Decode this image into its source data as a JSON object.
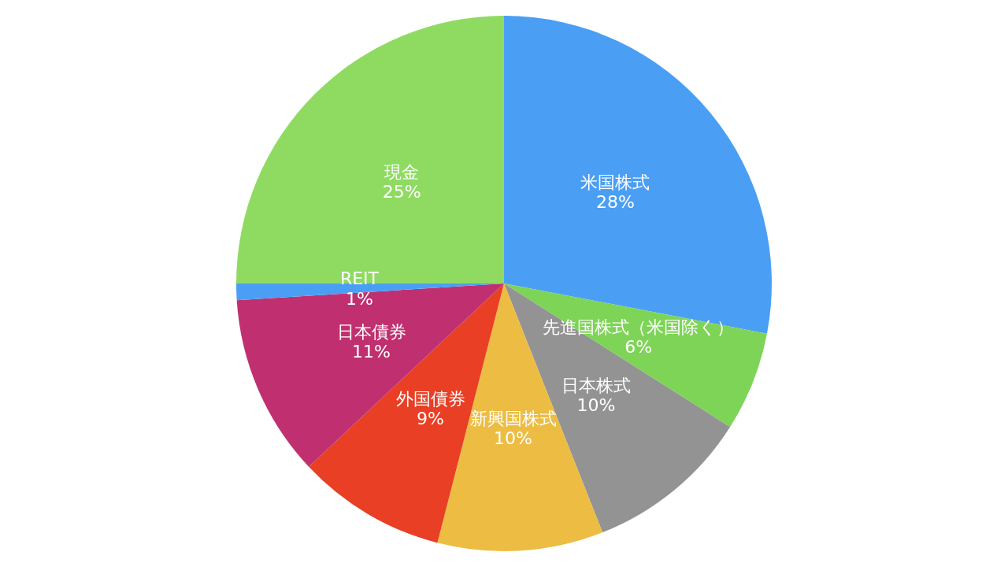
{
  "chart_data": {
    "type": "pie",
    "categories": [
      "米国株式",
      "先進国株式（米国除く）",
      "日本株式",
      "新興国株式",
      "外国債券",
      "日本債券",
      "REIT",
      "現金"
    ],
    "values": [
      28,
      6,
      10,
      10,
      9,
      11,
      1,
      25
    ],
    "colors": [
      "#4a9ff5",
      "#7ed456",
      "#939393",
      "#ecbd42",
      "#e83f25",
      "#c03070",
      "#4a9ff5",
      "#8fdb62"
    ],
    "value_labels": [
      "28%",
      "6%",
      "10%",
      "10%",
      "9%",
      "11%",
      "1%",
      "25%"
    ]
  }
}
